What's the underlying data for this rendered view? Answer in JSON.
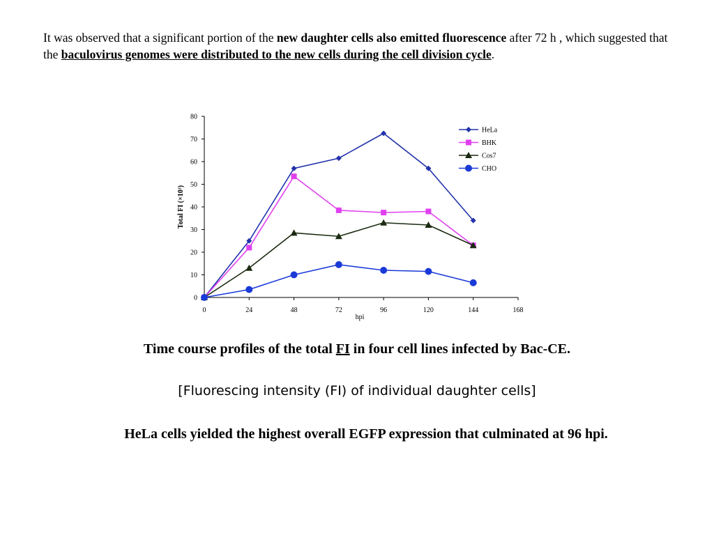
{
  "intro": {
    "part1": "It was observed that a significant portion of the ",
    "bold1": "new daughter cells also emitted fluorescence",
    "part2": " after 72 h , which suggested that the ",
    "bold2": "baculovirus genomes were distributed to the new cells during the cell division cycle",
    "part3": "."
  },
  "caption": {
    "part1": "Time course profiles of the total ",
    "underlined": "FI",
    "part2": " in four cell lines infected by Bac-CE."
  },
  "subcaption": "[Fluorescing intensity (FI) of individual daughter cells]",
  "conclusion": "HeLa cells yielded the highest overall EGFP expression that culminated at 96 hpi.",
  "chart_data": {
    "type": "line",
    "xlabel": "hpi",
    "ylabel": "Total FI (×10³)",
    "xlim": [
      0,
      168
    ],
    "ylim": [
      0,
      80
    ],
    "xticks": [
      0,
      24,
      48,
      72,
      96,
      120,
      144,
      168
    ],
    "yticks": [
      0,
      10,
      20,
      30,
      40,
      50,
      60,
      70,
      80
    ],
    "x": [
      0,
      24,
      48,
      72,
      96,
      120,
      144
    ],
    "grid": false,
    "legend_position": "top-right",
    "series": [
      {
        "name": "HeLa",
        "color": "#2233aa",
        "marker": "diamond",
        "values": [
          0,
          25,
          57,
          61.5,
          72.5,
          57,
          34
        ]
      },
      {
        "name": "BHK",
        "color": "#e040f0",
        "marker": "square",
        "values": [
          0,
          22,
          53.5,
          38.5,
          37.5,
          38,
          23
        ]
      },
      {
        "name": "Cos7",
        "color": "#1a2a10",
        "marker": "triangle",
        "values": [
          0,
          13,
          28.5,
          27,
          33,
          32,
          23
        ]
      },
      {
        "name": "CHO",
        "color": "#1a3ad8",
        "marker": "circle",
        "values": [
          0,
          3.5,
          10,
          14.5,
          12,
          11.5,
          6.5
        ]
      }
    ]
  }
}
